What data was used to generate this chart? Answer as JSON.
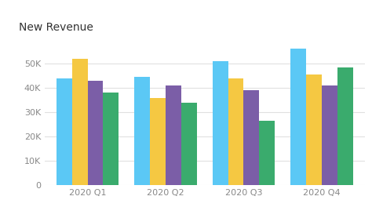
{
  "title": "New Revenue",
  "quarters": [
    "2020 Q1",
    "2020 Q2",
    "2020 Q3",
    "2020 Q4"
  ],
  "series": {
    "Kent": [
      44000,
      44500,
      51000,
      56000
    ],
    "Lincoln": [
      52000,
      36000,
      44000,
      45500
    ],
    "Mersey": [
      43000,
      41000,
      39000,
      41000
    ],
    "York": [
      38000,
      34000,
      26500,
      48500
    ]
  },
  "colors": {
    "Kent": "#5bc8f5",
    "Lincoln": "#f5c842",
    "Mersey": "#7b5ea7",
    "York": "#3aab6d"
  },
  "ylim": [
    0,
    60000
  ],
  "yticks": [
    0,
    10000,
    20000,
    30000,
    40000,
    50000
  ],
  "ytick_labels": [
    "0",
    "10K",
    "20K",
    "30K",
    "40K",
    "50K"
  ],
  "background_color": "#ffffff",
  "title_fontsize": 10,
  "tick_fontsize": 8,
  "legend_fontsize": 8
}
